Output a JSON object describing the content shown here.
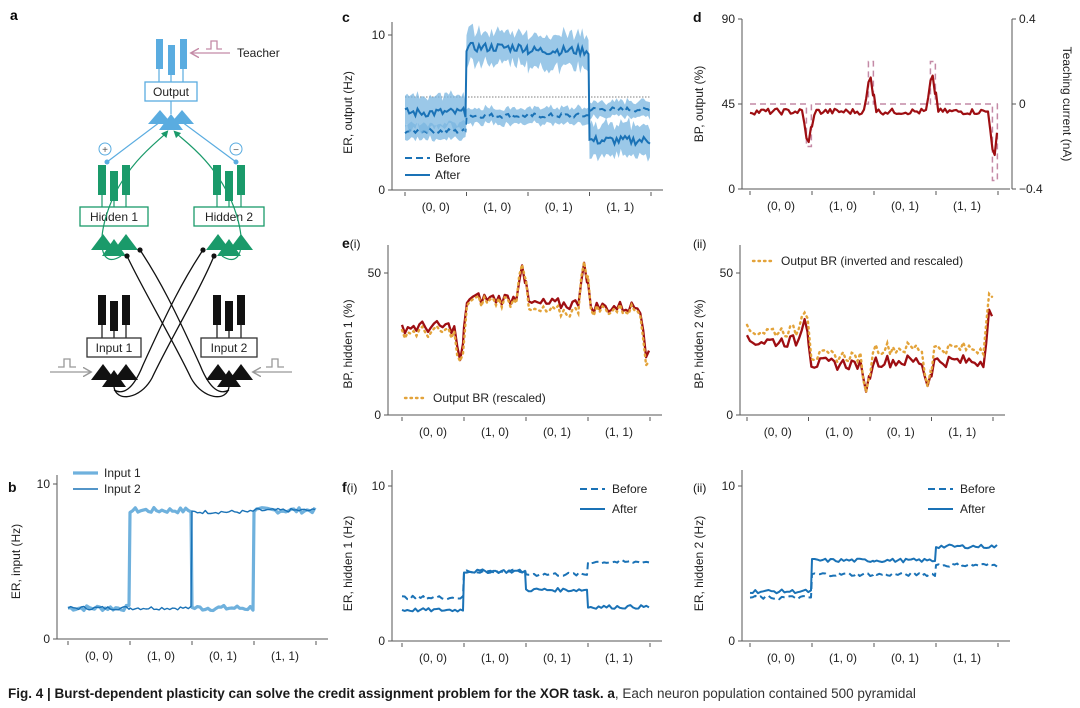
{
  "figure": {
    "caption_bold": "Fig. 4 | Burst-dependent plasticity can solve the credit assignment problem for the XOR task. a",
    "caption_rest": ", Each neuron population contained 500 pyramidal",
    "colors": {
      "output_blue": "#5aace0",
      "hidden_green": "#1a9a6a",
      "input_black": "#111111",
      "teacher_pink": "#c48aa6",
      "er_blue": "#1a72b6",
      "er_band": "#7ab6e0",
      "input1_light": "#6fb1dd",
      "bp_red": "#9e0e12",
      "br_orange": "#e3a33a"
    }
  },
  "diagram_a": {
    "panel_label": "a",
    "teacher_label": "Teacher",
    "output_label": "Output",
    "hidden1_label": "Hidden 1",
    "hidden2_label": "Hidden 2",
    "input1_label": "Input 1",
    "input2_label": "Input 2",
    "plus_sign": "+",
    "minus_sign": "−"
  },
  "chart_data": [
    {
      "id": "b",
      "panel_label": "b",
      "type": "line",
      "ylabel": "ER, input (Hz)",
      "yticks": [
        0,
        10
      ],
      "ylim": [
        0,
        10
      ],
      "categories": [
        "(0, 0)",
        "(1, 0)",
        "(0, 1)",
        "(1, 1)"
      ],
      "legend": {
        "position": "top-left",
        "entries": [
          "Input 1",
          "Input 2"
        ]
      },
      "series": [
        {
          "name": "Input 1",
          "style": "thick-light",
          "values_per_condition": [
            2.0,
            8.3,
            2.0,
            8.3
          ]
        },
        {
          "name": "Input 2",
          "style": "thin-dark",
          "values_per_condition": [
            2.0,
            2.0,
            8.2,
            8.3
          ]
        }
      ]
    },
    {
      "id": "c",
      "panel_label": "c",
      "type": "line",
      "ylabel": "ER, output (Hz)",
      "yticks": [
        0,
        10
      ],
      "ylim": [
        0,
        10
      ],
      "categories": [
        "(0, 0)",
        "(1, 0)",
        "(0, 1)",
        "(1, 1)"
      ],
      "legend": {
        "position": "bottom-left",
        "entries": [
          "Before",
          "After"
        ]
      },
      "threshold": 6.0,
      "series": [
        {
          "name": "Before",
          "style": "dashed",
          "values_per_condition": [
            3.8,
            4.8,
            4.8,
            5.2
          ],
          "band": 0.4
        },
        {
          "name": "After",
          "style": "solid",
          "values_per_condition": [
            5.0,
            9.2,
            9.0,
            3.2
          ],
          "band": 0.8
        }
      ]
    },
    {
      "id": "d",
      "panel_label": "d",
      "type": "line",
      "ylabel": "BP, output (%)",
      "yticks": [
        0,
        45,
        90
      ],
      "ylim": [
        0,
        90
      ],
      "y2label": "Teaching current (nA)",
      "y2ticks": [
        "−0.4",
        "0",
        "0.4"
      ],
      "y2lim": [
        -0.4,
        0.4
      ],
      "categories": [
        "(0, 0)",
        "(1, 0)",
        "(0, 1)",
        "(1, 1)"
      ],
      "series": [
        {
          "name": "BP output",
          "style": "solid-red",
          "baseline": 41,
          "events": [
            {
              "at": 0.95,
              "value": 22
            },
            {
              "at": 1.95,
              "value": 62
            },
            {
              "at": 2.95,
              "value": 63
            },
            {
              "at": 3.95,
              "value": 14
            }
          ]
        },
        {
          "name": "Teaching current",
          "style": "dashed-pink",
          "baseline_nA": 0,
          "events_nA": [
            {
              "at": 1.95,
              "value": 0.2
            },
            {
              "at": 2.95,
              "value": 0.2
            },
            {
              "at": 0.95,
              "value": -0.2
            },
            {
              "at": 3.95,
              "value": -0.36
            }
          ]
        }
      ]
    },
    {
      "id": "e_i",
      "panel_label": "e",
      "panel_sublabel": "(i)",
      "type": "line",
      "ylabel": "BP, hidden 1 (%)",
      "yticks": [
        0,
        50
      ],
      "ylim": [
        0,
        57
      ],
      "categories": [
        "(0, 0)",
        "(1, 0)",
        "(0, 1)",
        "(1, 1)"
      ],
      "legend": {
        "position": "bottom-left",
        "entries": [
          "Output BR (rescaled)"
        ]
      },
      "series": [
        {
          "name": "BP hidden 1",
          "style": "solid-red",
          "values_per_condition": [
            31,
            41,
            39,
            38
          ],
          "events": [
            {
              "at": 0.95,
              "value": 19
            },
            {
              "at": 1.95,
              "value": 53
            },
            {
              "at": 2.95,
              "value": 54
            },
            {
              "at": 3.97,
              "value": 17
            }
          ]
        },
        {
          "name": "Output BR (rescaled)",
          "style": "dotted-orange",
          "values_per_condition": [
            29,
            40,
            36,
            37
          ]
        }
      ]
    },
    {
      "id": "e_ii",
      "panel_label": "",
      "panel_sublabel": "(ii)",
      "type": "line",
      "ylabel": "BP, hidden 2 (%)",
      "yticks": [
        0,
        50
      ],
      "ylim": [
        0,
        57
      ],
      "categories": [
        "(0, 0)",
        "(1, 0)",
        "(0, 1)",
        "(1, 1)"
      ],
      "legend": {
        "position": "top-left",
        "entries": [
          "Output BR (inverted and rescaled)"
        ]
      },
      "series": [
        {
          "name": "BP hidden 2",
          "style": "solid-red",
          "values_per_condition": [
            26,
            18,
            19,
            19
          ],
          "events": [
            {
              "at": 0.95,
              "value": 34
            },
            {
              "at": 1.95,
              "value": 8
            },
            {
              "at": 2.95,
              "value": 10
            },
            {
              "at": 3.97,
              "value": 41
            }
          ]
        },
        {
          "name": "Output BR (inverted and rescaled)",
          "style": "dotted-orange",
          "values_per_condition": [
            30,
            21,
            24,
            24
          ]
        }
      ]
    },
    {
      "id": "f_i",
      "panel_label": "f",
      "panel_sublabel": "(i)",
      "type": "line",
      "ylabel": "ER, hidden 1 (Hz)",
      "yticks": [
        0,
        10
      ],
      "ylim": [
        0,
        10
      ],
      "categories": [
        "(0, 0)",
        "(1, 0)",
        "(0, 1)",
        "(1, 1)"
      ],
      "legend": {
        "position": "top-right",
        "entries": [
          "Before",
          "After"
        ]
      },
      "series": [
        {
          "name": "Before",
          "style": "dashed",
          "values_per_condition": [
            2.8,
            4.5,
            4.3,
            5.1
          ]
        },
        {
          "name": "After",
          "style": "solid",
          "values_per_condition": [
            2.0,
            4.5,
            3.3,
            2.2
          ]
        }
      ]
    },
    {
      "id": "f_ii",
      "panel_label": "",
      "panel_sublabel": "(ii)",
      "type": "line",
      "ylabel": "ER, hidden 2 (Hz)",
      "yticks": [
        0,
        10
      ],
      "ylim": [
        0,
        10
      ],
      "categories": [
        "(0, 0)",
        "(1, 0)",
        "(0, 1)",
        "(1, 1)"
      ],
      "legend": {
        "position": "top-right",
        "entries": [
          "Before",
          "After"
        ]
      },
      "series": [
        {
          "name": "Before",
          "style": "dashed",
          "values_per_condition": [
            2.8,
            4.3,
            4.3,
            4.9
          ]
        },
        {
          "name": "After",
          "style": "solid",
          "values_per_condition": [
            3.2,
            5.2,
            5.2,
            6.1
          ]
        }
      ]
    }
  ]
}
